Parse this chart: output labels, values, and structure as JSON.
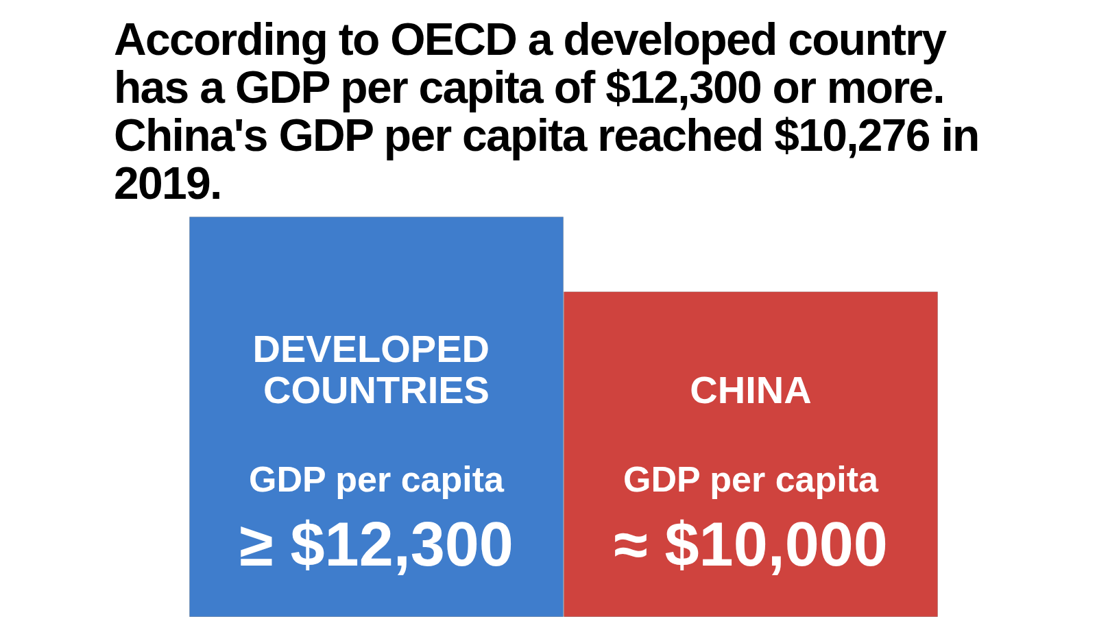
{
  "chart_data": {
    "type": "bar",
    "title": "According to OECD a developed country has a GDP per capita of $12,300 or more. China's GDP per capita reached $10,276 in 2019.",
    "categories": [
      "DEVELOPED COUNTRIES",
      "CHINA"
    ],
    "values": [
      12300,
      10000
    ],
    "colors": [
      "#3f7dcc",
      "#cf433e"
    ],
    "value_labels": [
      "≥ $12,300",
      "≈ $10,000"
    ],
    "annotations": [
      "GDP per capita",
      "GDP per capita"
    ]
  }
}
